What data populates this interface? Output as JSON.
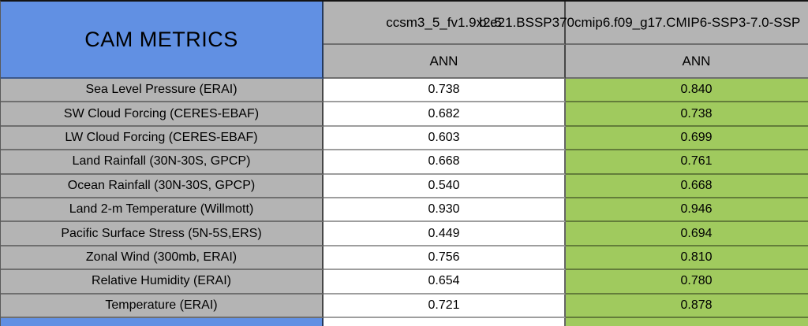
{
  "colors": {
    "title_blue": "#6190E3",
    "header_gray": "#B4B4B4",
    "highlight_green": "#A0CA5E",
    "value_white": "#FFFFFF",
    "text": "#000000"
  },
  "chart_data": {
    "type": "table",
    "title": "CAM METRICS",
    "column_groups": [
      "ccsm3_5_fv1.9x2.5",
      "b.e21.BSSP370cmip6.f09_g17.CMIP6-SSP3-7.0-SSP"
    ],
    "sub_headers": [
      "ANN",
      "ANN"
    ],
    "highlighted_column_index": 1,
    "rows": [
      {
        "metric": "Sea Level Pressure (ERAI)",
        "values": [
          "0.738",
          "0.840"
        ]
      },
      {
        "metric": "SW Cloud Forcing (CERES-EBAF)",
        "values": [
          "0.682",
          "0.738"
        ]
      },
      {
        "metric": "LW Cloud Forcing (CERES-EBAF)",
        "values": [
          "0.603",
          "0.699"
        ]
      },
      {
        "metric": "Land Rainfall (30N-30S, GPCP)",
        "values": [
          "0.668",
          "0.761"
        ]
      },
      {
        "metric": "Ocean Rainfall (30N-30S, GPCP)",
        "values": [
          "0.540",
          "0.668"
        ]
      },
      {
        "metric": "Land 2-m Temperature (Willmott)",
        "values": [
          "0.930",
          "0.946"
        ]
      },
      {
        "metric": "Pacific Surface Stress (5N-5S,ERS)",
        "values": [
          "0.449",
          "0.694"
        ]
      },
      {
        "metric": "Zonal Wind (300mb, ERAI)",
        "values": [
          "0.756",
          "0.810"
        ]
      },
      {
        "metric": "Relative Humidity (ERAI)",
        "values": [
          "0.654",
          "0.780"
        ]
      },
      {
        "metric": "Temperature (ERAI)",
        "values": [
          "0.721",
          "0.878"
        ]
      }
    ]
  }
}
